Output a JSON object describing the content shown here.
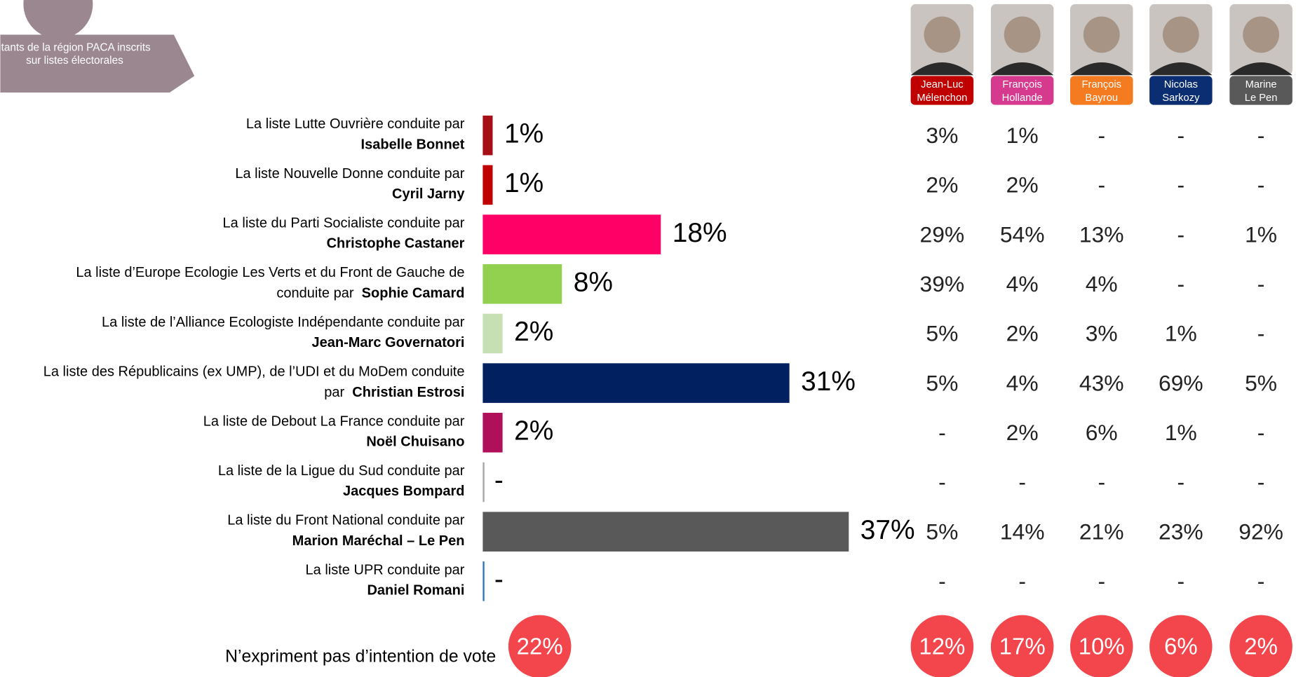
{
  "banner": [
    "itants de la région PACA inscrits",
    "sur listes électorales"
  ],
  "chart_data": {
    "type": "bar",
    "orientation": "horizontal",
    "categories": [
      "La liste Lutte Ouvrière conduite par",
      "La liste Nouvelle Donne conduite par",
      "La liste du Parti Socialiste conduite par",
      "La liste d’Europe Ecologie Les Verts et du Front de Gauche de",
      "La liste de l’Alliance Ecologiste Indépendante conduite par",
      "La liste des Républicains (ex UMP), de l’UDI et du MoDem conduite",
      "La liste de Debout La France conduite par",
      "La liste de la Ligue du Sud conduite par",
      "La liste du Front National conduite par",
      "La liste UPR conduite par"
    ],
    "category_prefixes": [
      null,
      null,
      null,
      "conduite par",
      null,
      "par",
      null,
      null,
      null,
      null
    ],
    "candidates": [
      "Isabelle Bonnet",
      "Cyril Jarny",
      "Christophe Castaner",
      "Sophie Camard",
      "Jean-Marc Governatori",
      "Christian Estrosi",
      "Noël Chuisano",
      "Jacques Bompard",
      "Marion Maréchal – Le Pen",
      "Daniel Romani"
    ],
    "values": [
      1,
      1,
      18,
      8,
      2,
      31,
      2,
      null,
      37,
      null
    ],
    "value_labels": [
      "1%",
      "1%",
      "18%",
      "8%",
      "2%",
      "31%",
      "2%",
      "-",
      "37%",
      "-"
    ],
    "colors": [
      "#a50f15",
      "#c00000",
      "#ff0066",
      "#92d050",
      "#c6e0b4",
      "#002060",
      "#b0105a",
      "#a6a6a6",
      "#595959",
      "#2e75b6"
    ],
    "xlim": [
      0,
      37
    ]
  },
  "table": {
    "columns": [
      {
        "first": "Jean-Luc",
        "last": "Mélenchon",
        "color": "#c00000"
      },
      {
        "first": "François",
        "last": "Hollande",
        "color": "#d63a8e"
      },
      {
        "first": "François",
        "last": "Bayrou",
        "color": "#f47b20"
      },
      {
        "first": "Nicolas",
        "last": "Sarkozy",
        "color": "#0b2d72"
      },
      {
        "first": "Marine",
        "last": "Le Pen",
        "color": "#595959"
      }
    ],
    "rows": [
      [
        "3%",
        "1%",
        "-",
        "-",
        "-"
      ],
      [
        "2%",
        "2%",
        "-",
        "-",
        "-"
      ],
      [
        "29%",
        "54%",
        "13%",
        "-",
        "1%"
      ],
      [
        "39%",
        "4%",
        "4%",
        "-",
        "-"
      ],
      [
        "5%",
        "2%",
        "3%",
        "1%",
        "-"
      ],
      [
        "5%",
        "4%",
        "43%",
        "69%",
        "5%"
      ],
      [
        "-",
        "2%",
        "6%",
        "1%",
        "-"
      ],
      [
        "-",
        "-",
        "-",
        "-",
        "-"
      ],
      [
        "5%",
        "14%",
        "21%",
        "23%",
        "92%"
      ],
      [
        "-",
        "-",
        "-",
        "-",
        "-"
      ]
    ]
  },
  "no_opinion": {
    "label": "N’expriment pas d’intention de vote",
    "total": "22%",
    "by_candidate": [
      "12%",
      "17%",
      "10%",
      "6%",
      "2%"
    ]
  }
}
